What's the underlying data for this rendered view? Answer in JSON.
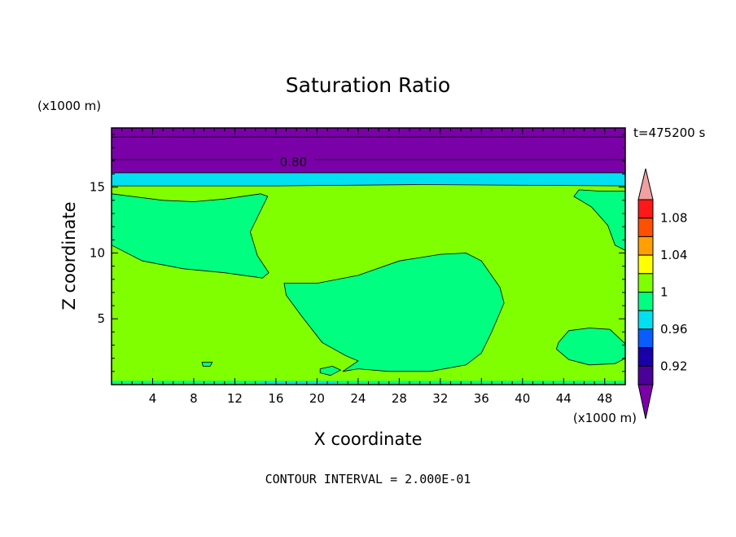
{
  "chart_data": {
    "type": "heatmap",
    "subtype": "filled-contour",
    "title": "Saturation Ratio",
    "xlabel": "X coordinate",
    "ylabel": "Z coordinate",
    "x_unit": "(x1000 m)",
    "y_unit": "(x1000 m)",
    "time_label": "t=475200 s",
    "footer": "CONTOUR INTERVAL = 2.000E-01",
    "xlim": [
      0,
      50
    ],
    "ylim": [
      0,
      19.5
    ],
    "x_ticks": [
      4,
      8,
      12,
      16,
      20,
      24,
      28,
      32,
      36,
      40,
      44,
      48
    ],
    "y_ticks": [
      5,
      10,
      15
    ],
    "contour_labels": [
      {
        "value": "0.80",
        "x": 17.7,
        "y": 16.9
      }
    ],
    "colorbar": {
      "tick_labels": [
        "0.92",
        "0.96",
        "1",
        "1.04",
        "1.08"
      ],
      "levels": [
        {
          "lower": null,
          "upper": 0.9,
          "color": "#7a00a8"
        },
        {
          "lower": 0.9,
          "upper": 0.92,
          "color": "#4b0099"
        },
        {
          "lower": 0.92,
          "upper": 0.94,
          "color": "#1a00a8"
        },
        {
          "lower": 0.94,
          "upper": 0.96,
          "color": "#0a5cff"
        },
        {
          "lower": 0.96,
          "upper": 0.98,
          "color": "#00e0f0"
        },
        {
          "lower": 0.98,
          "upper": 1.0,
          "color": "#00ff80"
        },
        {
          "lower": 1.0,
          "upper": 1.02,
          "color": "#80ff00"
        },
        {
          "lower": 1.02,
          "upper": 1.04,
          "color": "#ffff00"
        },
        {
          "lower": 1.04,
          "upper": 1.06,
          "color": "#ffa000"
        },
        {
          "lower": 1.06,
          "upper": 1.08,
          "color": "#ff5000"
        },
        {
          "lower": 1.08,
          "upper": 1.1,
          "color": "#ff1818"
        },
        {
          "lower": 1.1,
          "upper": null,
          "color": "#f0a0a0"
        }
      ]
    },
    "regions": [
      {
        "name": "background",
        "value_range": [
          1.0,
          1.02
        ],
        "color": "#80ff00",
        "points": [
          [
            0,
            0
          ],
          [
            50,
            0
          ],
          [
            50,
            19.5
          ],
          [
            0,
            19.5
          ]
        ]
      },
      {
        "name": "dry-layer-top",
        "value_range": [
          null,
          0.9
        ],
        "color": "#7a00a8",
        "points": [
          [
            0,
            16.1
          ],
          [
            50,
            16.1
          ],
          [
            50,
            19.5
          ],
          [
            0,
            19.5
          ]
        ]
      },
      {
        "name": "transition-band",
        "value_range": [
          0.96,
          0.98
        ],
        "color": "#00e0f0",
        "points": [
          [
            0,
            15.1
          ],
          [
            16,
            15.1
          ],
          [
            30,
            15.2
          ],
          [
            50,
            15.1
          ],
          [
            50,
            16.1
          ],
          [
            0,
            16.1
          ]
        ]
      },
      {
        "name": "upper-left-region",
        "value_range": [
          0.98,
          1.0
        ],
        "color": "#00ff80",
        "points": [
          [
            0,
            14.5
          ],
          [
            2,
            14.3
          ],
          [
            5,
            14
          ],
          [
            8,
            13.9
          ],
          [
            11,
            14.1
          ],
          [
            14.5,
            14.5
          ],
          [
            15.2,
            14.3
          ],
          [
            14.5,
            13.2
          ],
          [
            13.5,
            11.6
          ],
          [
            14.2,
            9.8
          ],
          [
            15.3,
            8.5
          ],
          [
            14.7,
            8.1
          ],
          [
            11,
            8.5
          ],
          [
            7,
            8.8
          ],
          [
            3,
            9.4
          ],
          [
            0,
            10.6
          ]
        ]
      },
      {
        "name": "upper-right-region",
        "value_range": [
          0.98,
          1.0
        ],
        "color": "#00ff80",
        "points": [
          [
            50,
            14.7
          ],
          [
            47.5,
            14.7
          ],
          [
            45.5,
            14.8
          ],
          [
            45,
            14.3
          ],
          [
            46.7,
            13.5
          ],
          [
            48.3,
            12.1
          ],
          [
            49,
            10.6
          ],
          [
            50,
            10.2
          ]
        ]
      },
      {
        "name": "middle-region",
        "value_range": [
          0.98,
          1.0
        ],
        "color": "#00ff80",
        "points": [
          [
            16.8,
            7.7
          ],
          [
            20,
            7.7
          ],
          [
            24,
            8.3
          ],
          [
            28,
            9.4
          ],
          [
            32,
            9.9
          ],
          [
            34.5,
            10
          ],
          [
            36,
            9.4
          ],
          [
            37.8,
            7.4
          ],
          [
            38.2,
            6.2
          ],
          [
            37,
            4
          ],
          [
            36,
            2.4
          ],
          [
            34.5,
            1.5
          ],
          [
            31,
            1
          ],
          [
            27,
            1
          ],
          [
            24,
            1.2
          ],
          [
            22.5,
            1
          ],
          [
            24,
            1.8
          ],
          [
            22.8,
            2.2
          ],
          [
            20.5,
            3.2
          ],
          [
            18.5,
            5.2
          ],
          [
            17,
            6.8
          ]
        ]
      },
      {
        "name": "lower-right-region",
        "value_range": [
          0.98,
          1.0
        ],
        "color": "#00ff80",
        "points": [
          [
            43.5,
            3.2
          ],
          [
            44.5,
            4.1
          ],
          [
            46.5,
            4.3
          ],
          [
            48.5,
            4.2
          ],
          [
            50,
            3.1
          ],
          [
            50,
            2
          ],
          [
            49,
            1.6
          ],
          [
            46.5,
            1.5
          ],
          [
            44.5,
            1.9
          ],
          [
            43.3,
            2.7
          ]
        ]
      },
      {
        "name": "small-cell-1",
        "value_range": [
          0.98,
          1.0
        ],
        "color": "#00ff80",
        "points": [
          [
            8.8,
            1.7
          ],
          [
            9.8,
            1.7
          ],
          [
            9.6,
            1.4
          ],
          [
            8.9,
            1.4
          ]
        ]
      },
      {
        "name": "small-cell-2",
        "value_range": [
          0.98,
          1.0
        ],
        "color": "#00ff80",
        "points": [
          [
            20.3,
            1.2
          ],
          [
            21.5,
            1.4
          ],
          [
            22.3,
            1.1
          ],
          [
            21.3,
            0.7
          ],
          [
            20.3,
            0.9
          ]
        ]
      },
      {
        "name": "bottom-strip",
        "value_range": [
          0.98,
          1.0
        ],
        "color": "#00ff80",
        "points": [
          [
            0,
            0
          ],
          [
            50,
            0
          ],
          [
            50,
            0.3
          ],
          [
            0,
            0.3
          ]
        ]
      },
      {
        "name": "bottom-cyan-patch",
        "value_range": [
          0.96,
          0.98
        ],
        "color": "#00e0f0",
        "points": [
          [
            14.5,
            0.05
          ],
          [
            22,
            0.05
          ],
          [
            22,
            0.2
          ],
          [
            14.5,
            0.2
          ]
        ]
      }
    ],
    "contour_lines": [
      {
        "y": 18.8
      },
      {
        "y": 17.1
      }
    ]
  }
}
